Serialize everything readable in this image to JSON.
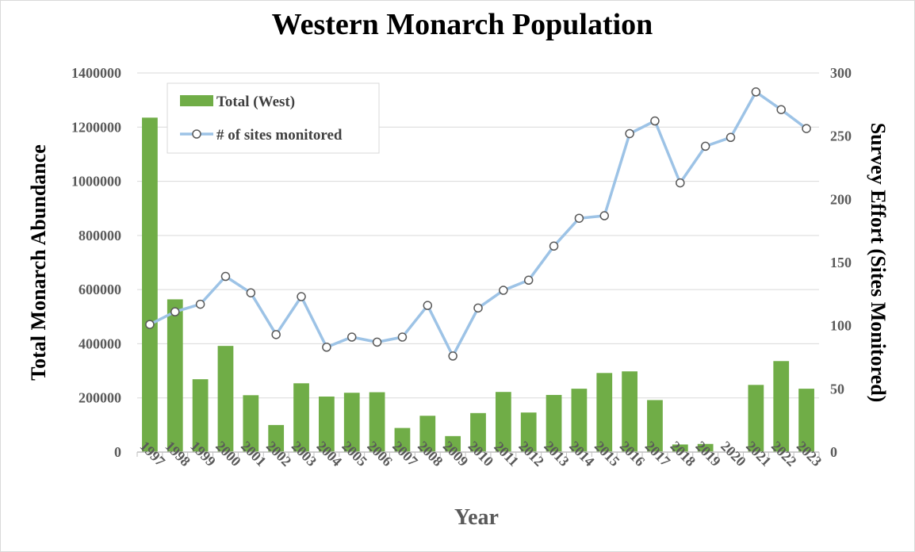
{
  "chart_data": {
    "type": "bar",
    "title": "Western Monarch Population",
    "xlabel": "Year",
    "ylabel": "Total Monarch Abundance",
    "y2label": "Survey Effort (Sites Monitored)",
    "categories": [
      "1997",
      "1998",
      "1999",
      "2000",
      "2001",
      "2002",
      "2003",
      "2004",
      "2005",
      "2006",
      "2007",
      "2008",
      "2009",
      "2010",
      "2011",
      "2012",
      "2013",
      "2014",
      "2015",
      "2016",
      "2017",
      "2018",
      "2019",
      "2020",
      "2021",
      "2022",
      "2023"
    ],
    "ylim": [
      0,
      1400000
    ],
    "y_ticks": [
      "0",
      "200000",
      "400000",
      "600000",
      "800000",
      "1000000",
      "1200000",
      "1400000"
    ],
    "y_tick_values": [
      0,
      200000,
      400000,
      600000,
      800000,
      1000000,
      1200000,
      1400000
    ],
    "y2lim": [
      0,
      300
    ],
    "y2_ticks": [
      "0",
      "50",
      "100",
      "150",
      "200",
      "250",
      "300"
    ],
    "y2_tick_values": [
      0,
      50,
      100,
      150,
      200,
      250,
      300
    ],
    "grid": true,
    "legend_position": "top-left",
    "series": [
      {
        "name": "Total (West)",
        "type": "bar",
        "axis": "left",
        "color": "#70ad47",
        "values": [
          1235000,
          564000,
          269000,
          392000,
          210000,
          100000,
          254000,
          205000,
          219000,
          221000,
          89000,
          134000,
          59000,
          144000,
          222000,
          146000,
          211000,
          234000,
          292000,
          298000,
          192000,
          28000,
          30000,
          0,
          248000,
          336000,
          234000
        ]
      },
      {
        "name": "# of sites monitored",
        "type": "line",
        "axis": "right",
        "color": "#9dc3e6",
        "marker": "circle",
        "values": [
          101,
          111,
          117,
          139,
          126,
          93,
          123,
          83,
          91,
          87,
          91,
          116,
          76,
          114,
          128,
          136,
          163,
          185,
          187,
          252,
          262,
          213,
          242,
          249,
          285,
          271,
          256
        ]
      }
    ]
  }
}
